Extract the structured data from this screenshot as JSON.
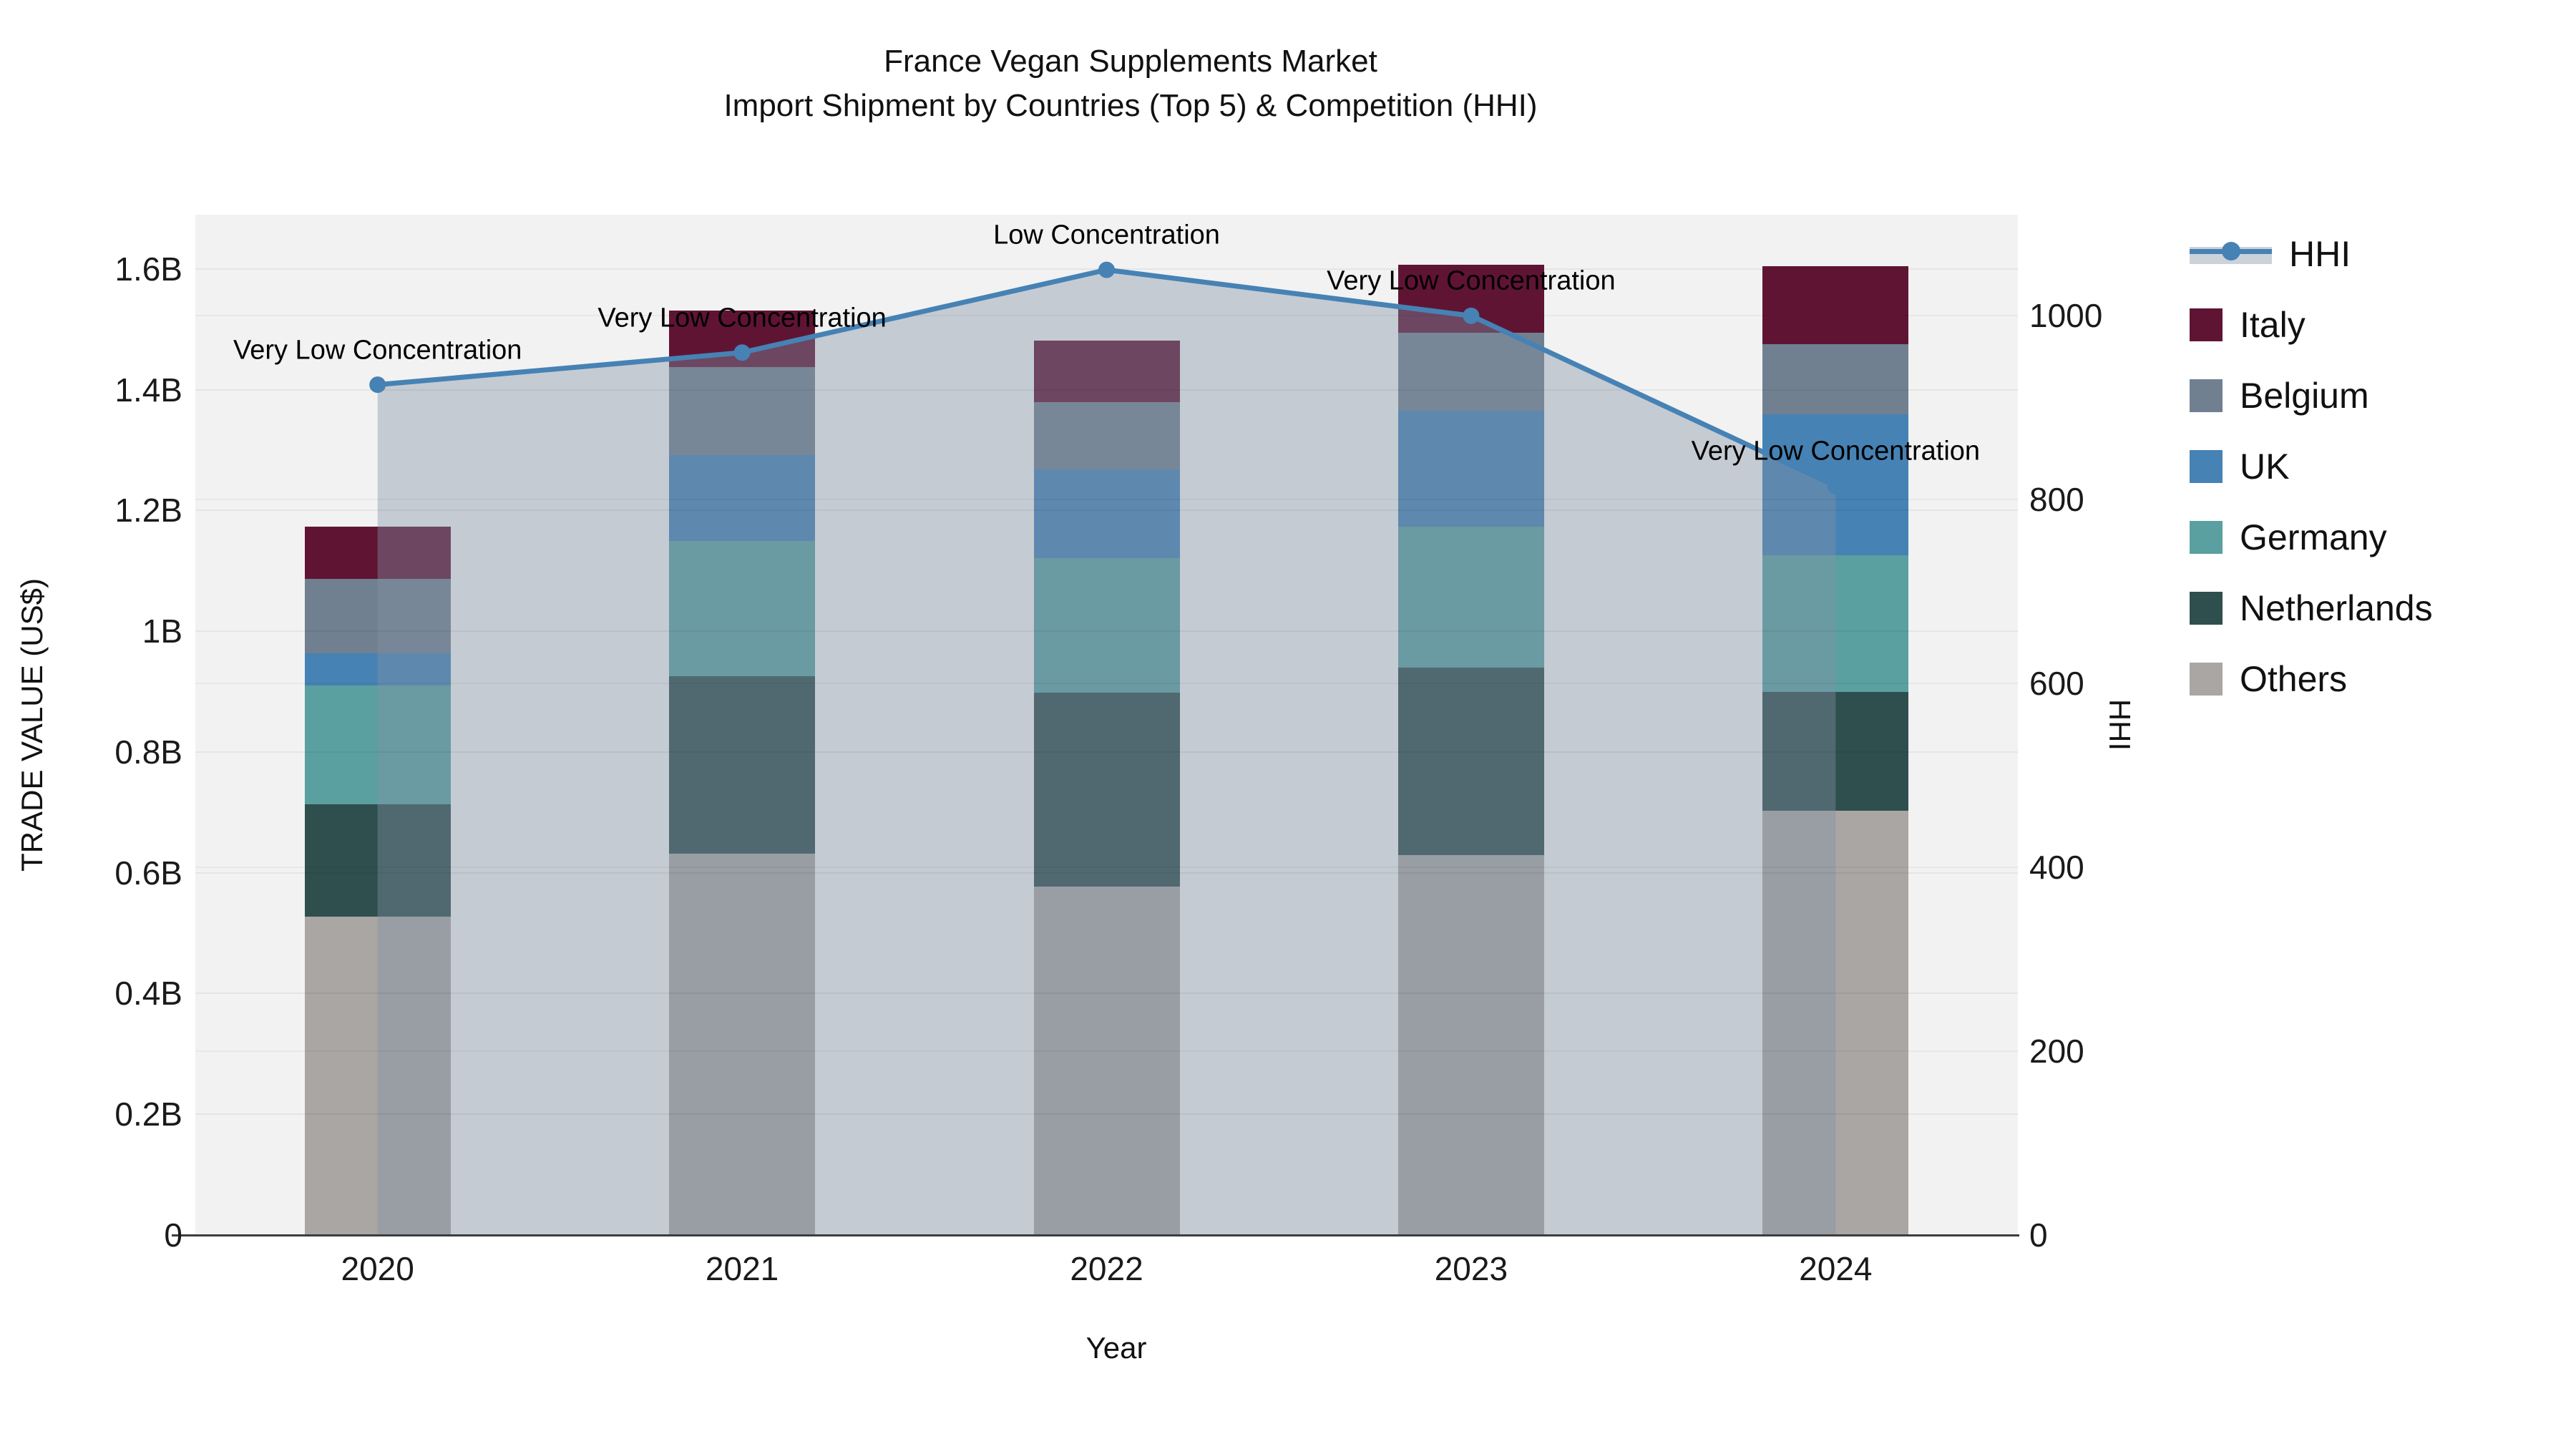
{
  "title": {
    "line1": "France Vegan Supplements Market",
    "line2": "Import Shipment by Countries (Top 5) & Competition (HHI)"
  },
  "chart_data": {
    "type": "bar",
    "subtype": "stacked-bars-with-hhi-line",
    "categories": [
      "2020",
      "2021",
      "2022",
      "2023",
      "2024"
    ],
    "series": [
      {
        "name": "Others",
        "color": "#a9a6a3",
        "values": [
          0.527,
          0.632,
          0.577,
          0.629,
          0.703
        ]
      },
      {
        "name": "Netherlands",
        "color": "#2f4f4f",
        "values": [
          0.187,
          0.294,
          0.321,
          0.311,
          0.196
        ]
      },
      {
        "name": "Germany",
        "color": "#5aa0a0",
        "values": [
          0.196,
          0.223,
          0.223,
          0.233,
          0.227
        ]
      },
      {
        "name": "UK",
        "color": "#4682b4",
        "values": [
          0.053,
          0.143,
          0.147,
          0.192,
          0.233
        ]
      },
      {
        "name": "Belgium",
        "color": "#708090",
        "values": [
          0.124,
          0.145,
          0.112,
          0.13,
          0.117
        ]
      },
      {
        "name": "Italy",
        "color": "#601434",
        "values": [
          0.086,
          0.094,
          0.102,
          0.112,
          0.129
        ]
      }
    ],
    "totals_billion": [
      1.173,
      1.531,
      1.482,
      1.607,
      1.605
    ],
    "line": {
      "name": "HHI",
      "color": "#4682b4",
      "area_fill": "rgba(130,145,165,0.40)",
      "values": [
        925,
        960,
        1050,
        1000,
        815
      ],
      "annotations": [
        "Very Low Concentration",
        "Very Low Concentration",
        "Low Concentration",
        "Very Low Concentration",
        "Very Low Concentration"
      ]
    },
    "left_axis": {
      "label": "TRADE VALUE (US$)",
      "ticks": [
        "0",
        "0.2B",
        "0.4B",
        "0.6B",
        "0.8B",
        "1B",
        "1.2B",
        "1.4B",
        "1.6B"
      ],
      "tick_values": [
        0,
        0.2,
        0.4,
        0.6,
        0.8,
        1.0,
        1.2,
        1.4,
        1.6
      ],
      "range": [
        0,
        1.69
      ]
    },
    "right_axis": {
      "label": "HHI",
      "ticks": [
        "0",
        "200",
        "400",
        "600",
        "800",
        "1000"
      ],
      "tick_values": [
        0,
        200,
        400,
        600,
        800,
        1000
      ],
      "range": [
        0,
        1110
      ]
    },
    "xlabel": "Year",
    "grid": true,
    "plot_background": "#f2f2f2",
    "legend_position": "right"
  },
  "legend": {
    "items": [
      {
        "label": "HHI",
        "type": "line",
        "color": "#4682b4",
        "band": "#ccd2da"
      },
      {
        "label": "Italy",
        "type": "swatch",
        "color": "#601434"
      },
      {
        "label": "Belgium",
        "type": "swatch",
        "color": "#708090"
      },
      {
        "label": "UK",
        "type": "swatch",
        "color": "#4682b4"
      },
      {
        "label": "Germany",
        "type": "swatch",
        "color": "#5aa0a0"
      },
      {
        "label": "Netherlands",
        "type": "swatch",
        "color": "#2f4f4f"
      },
      {
        "label": "Others",
        "type": "swatch",
        "color": "#a9a6a3"
      }
    ]
  }
}
